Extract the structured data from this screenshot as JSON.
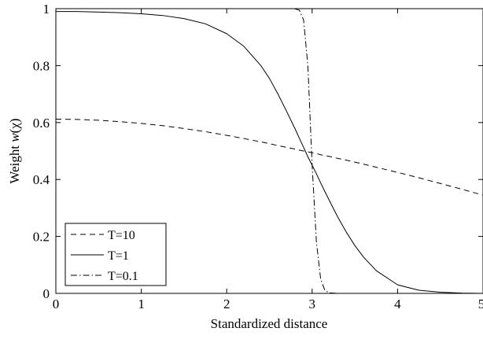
{
  "chart_data": {
    "type": "line",
    "xlabel": "Standardized distance",
    "ylabel": {
      "prefix": "Weight ",
      "func": "w",
      "open": "(",
      "arg": "χ",
      "close": ")"
    },
    "xlim": [
      0,
      5
    ],
    "ylim": [
      0,
      1
    ],
    "x_ticks": [
      0,
      1,
      2,
      3,
      4,
      5
    ],
    "y_ticks": [
      0,
      0.2,
      0.4,
      0.6,
      0.8,
      1
    ],
    "x_tick_labels": [
      "0",
      "1",
      "2",
      "3",
      "4",
      "5"
    ],
    "y_tick_labels": [
      "0",
      "0.2",
      "0.4",
      "0.6",
      "0.8",
      "1"
    ],
    "grid": false,
    "legend_position": "bottom-left",
    "x": [
      0,
      0.25,
      0.5,
      0.75,
      1,
      1.25,
      1.5,
      1.75,
      2,
      2.2,
      2.4,
      2.5,
      2.6,
      2.7,
      2.8,
      2.85,
      2.9,
      2.95,
      3,
      3.05,
      3.1,
      3.15,
      3.2,
      3.3,
      3.4,
      3.5,
      3.6,
      3.75,
      4,
      4.25,
      4.5,
      4.75,
      5
    ],
    "series": [
      {
        "name": "T=10",
        "style": "dashed",
        "values": [
          0.612,
          0.611,
          0.608,
          0.603,
          0.597,
          0.589,
          0.579,
          0.568,
          0.555,
          0.544,
          0.532,
          0.526,
          0.519,
          0.513,
          0.507,
          0.503,
          0.5,
          0.497,
          0.494,
          0.491,
          0.487,
          0.484,
          0.481,
          0.474,
          0.468,
          0.461,
          0.454,
          0.443,
          0.425,
          0.406,
          0.386,
          0.366,
          0.345
        ]
      },
      {
        "name": "T=1",
        "style": "solid",
        "values": [
          0.99,
          0.99,
          0.988,
          0.986,
          0.982,
          0.976,
          0.965,
          0.947,
          0.912,
          0.868,
          0.8,
          0.755,
          0.7,
          0.64,
          0.578,
          0.545,
          0.513,
          0.48,
          0.45,
          0.42,
          0.388,
          0.357,
          0.327,
          0.268,
          0.215,
          0.168,
          0.128,
          0.08,
          0.03,
          0.011,
          0.004,
          0.001,
          0.0
        ]
      },
      {
        "name": "T=0.1",
        "style": "dashdot",
        "values": [
          null,
          null,
          null,
          null,
          null,
          null,
          null,
          null,
          null,
          null,
          null,
          null,
          null,
          null,
          0.999,
          0.995,
          0.96,
          0.8,
          0.45,
          0.18,
          0.05,
          0.01,
          0.002,
          0.0,
          0.0,
          0.0,
          0.0,
          0.0,
          0.0,
          0.0,
          0.0,
          0.0,
          0.0
        ]
      }
    ]
  }
}
